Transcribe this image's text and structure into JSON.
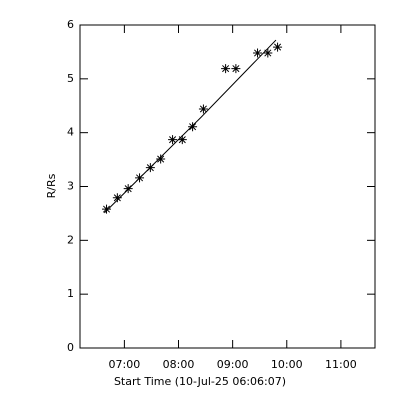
{
  "chart_data": {
    "type": "scatter",
    "x_label": "Start Time (10-Jul-25 06:06:07)",
    "y_label": "R/Rs",
    "x": [
      6.67,
      6.87,
      7.07,
      7.28,
      7.48,
      7.67,
      7.89,
      8.07,
      8.26,
      8.46,
      8.87,
      9.06,
      9.46,
      9.65,
      9.83
    ],
    "values": [
      2.58,
      2.79,
      2.96,
      3.16,
      3.35,
      3.51,
      3.87,
      3.87,
      4.11,
      4.44,
      5.19,
      5.19,
      5.48,
      5.48,
      5.59
    ],
    "fit": {
      "x": [
        6.63,
        8.41,
        9.8
      ],
      "y": [
        2.51,
        4.28,
        5.72
      ]
    },
    "color": "#000000",
    "xlim": [
      6.18,
      11.63
    ],
    "ylim": [
      0,
      6
    ],
    "xticks": [
      {
        "value": 7,
        "label": "07:00"
      },
      {
        "value": 8,
        "label": "08:00"
      },
      {
        "value": 9,
        "label": "09:00"
      },
      {
        "value": 10,
        "label": "10:00"
      },
      {
        "value": 11,
        "label": "11:00"
      }
    ],
    "yticks": [
      0,
      1,
      2,
      3,
      4,
      5,
      6
    ]
  }
}
